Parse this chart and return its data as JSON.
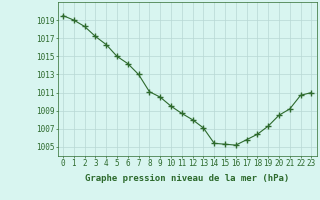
{
  "hours": [
    0,
    1,
    2,
    3,
    4,
    5,
    6,
    7,
    8,
    9,
    10,
    11,
    12,
    13,
    14,
    15,
    16,
    17,
    18,
    19,
    20,
    21,
    22,
    23
  ],
  "pressure": [
    1019.5,
    1019.0,
    1018.3,
    1017.2,
    1016.3,
    1015.0,
    1014.2,
    1013.0,
    1011.1,
    1010.5,
    1009.5,
    1008.7,
    1008.0,
    1007.1,
    1005.4,
    1005.3,
    1005.2,
    1005.8,
    1006.4,
    1007.3,
    1008.5,
    1009.2,
    1010.7,
    1011.0
  ],
  "line_color": "#2d6a2d",
  "marker": "+",
  "marker_color": "#2d6a2d",
  "bg_color": "#d8f5f0",
  "grid_color": "#b8d8d4",
  "ylabel_ticks": [
    1005,
    1007,
    1009,
    1011,
    1013,
    1015,
    1017,
    1019
  ],
  "xlabel": "Graphe pression niveau de la mer (hPa)",
  "xlim": [
    -0.5,
    23.5
  ],
  "ylim": [
    1004.0,
    1021.0
  ],
  "tick_fontsize": 5.5,
  "label_fontsize": 6.5,
  "axis_color": "#2d6a2d"
}
